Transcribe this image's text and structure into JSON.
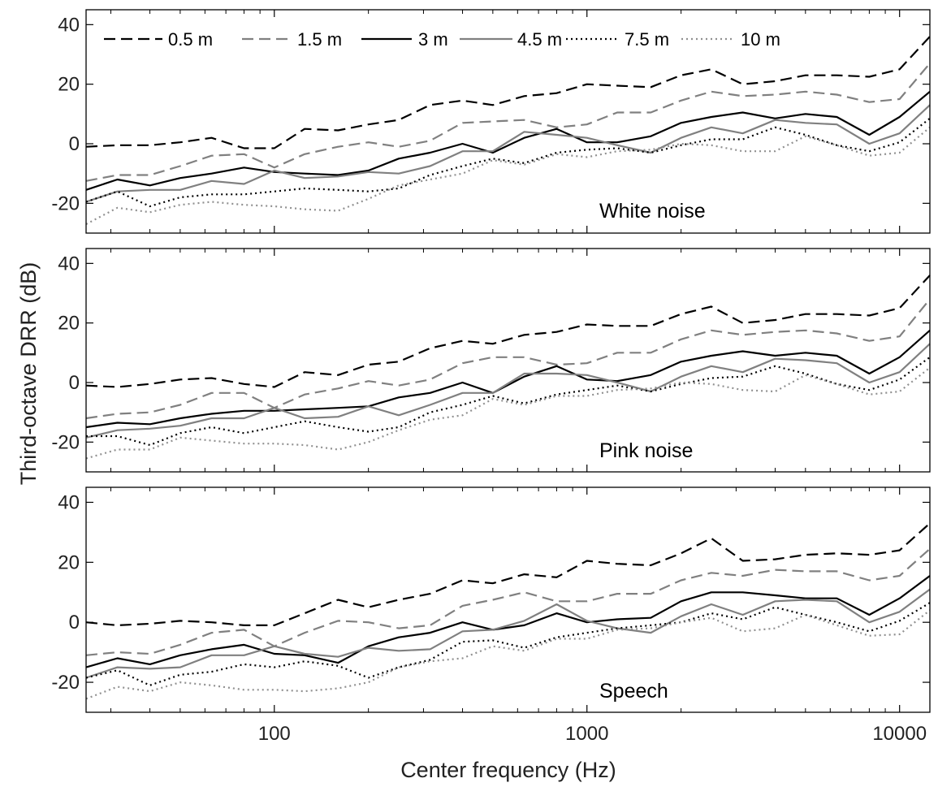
{
  "chart_data": {
    "type": "line",
    "xlabel": "Center frequency (Hz)",
    "ylabel": "Third-octave DRR (dB)",
    "x_scale": "log",
    "xlim": [
      25,
      12500
    ],
    "ylim": [
      -30,
      45
    ],
    "x_ticks": [
      100,
      1000,
      10000
    ],
    "x_tick_labels": [
      "100",
      "1000",
      "10000"
    ],
    "y_ticks": [
      -20,
      0,
      20,
      40
    ],
    "y_tick_labels": [
      "-20",
      "0",
      "20",
      "40"
    ],
    "grid": false,
    "legend_position": "top",
    "x": [
      25,
      31.5,
      40,
      50,
      63,
      80,
      100,
      125,
      160,
      200,
      250,
      315,
      400,
      500,
      630,
      800,
      1000,
      1250,
      1600,
      2000,
      2500,
      3150,
      4000,
      5000,
      6300,
      8000,
      10000,
      12500
    ],
    "series_styles": [
      {
        "name": "0.5 m",
        "color": "#000000",
        "dash": "dashed"
      },
      {
        "name": "1.5 m",
        "color": "#808080",
        "dash": "dashed"
      },
      {
        "name": "3 m",
        "color": "#000000",
        "dash": "solid"
      },
      {
        "name": "4.5 m",
        "color": "#808080",
        "dash": "solid"
      },
      {
        "name": "7.5 m",
        "color": "#000000",
        "dash": "dotted"
      },
      {
        "name": "10 m",
        "color": "#909090",
        "dash": "dotted"
      }
    ],
    "panels": [
      {
        "label": "White noise",
        "series": [
          {
            "name": "0.5 m",
            "values": [
              -1,
              -0.5,
              -0.5,
              0.5,
              2,
              -1.5,
              -1.5,
              5,
              4.5,
              6.5,
              8,
              13,
              14.5,
              13,
              16,
              17,
              20,
              19.5,
              19,
              23,
              25,
              20,
              21,
              23,
              23,
              22.5,
              25,
              36
            ]
          },
          {
            "name": "1.5 m",
            "values": [
              -12.5,
              -10.5,
              -10.5,
              -7.5,
              -4,
              -3.5,
              -8,
              -3.5,
              -1,
              0.5,
              -1,
              1,
              7,
              7.5,
              8,
              5.5,
              6.5,
              10.5,
              10.5,
              14.5,
              17.5,
              16,
              16.5,
              17.5,
              16.5,
              14,
              15,
              27
            ]
          },
          {
            "name": "3 m",
            "values": [
              -15.5,
              -12,
              -14,
              -11.5,
              -10,
              -8,
              -9.5,
              -10,
              -10.5,
              -9,
              -5,
              -3,
              0,
              -3,
              2,
              5,
              0.5,
              0.5,
              2.5,
              7,
              9,
              10.5,
              8.5,
              10,
              9,
              3,
              9,
              17.5
            ]
          },
          {
            "name": "4.5 m",
            "values": [
              -19.5,
              -16,
              -15.5,
              -15.5,
              -12.5,
              -13.5,
              -9,
              -11.5,
              -11,
              -9.5,
              -10,
              -7.5,
              -2.5,
              -2.5,
              4,
              3,
              2,
              -0.5,
              -3,
              2,
              5.5,
              3.5,
              8,
              7,
              6.5,
              0,
              3.5,
              13
            ]
          },
          {
            "name": "7.5 m",
            "values": [
              -19.5,
              -16,
              -21,
              -18,
              -17,
              -17,
              -16,
              -15,
              -15.5,
              -16,
              -15,
              -10.5,
              -7.5,
              -5,
              -6.5,
              -3,
              -2,
              -1.5,
              -3,
              -0.5,
              1.5,
              1.5,
              5.5,
              3,
              -0.5,
              -2.5,
              0.5,
              8.5
            ]
          },
          {
            "name": "10 m",
            "values": [
              -27,
              -21.5,
              -23,
              -20.5,
              -19.5,
              -20.5,
              -21,
              -22,
              -22.5,
              -18.5,
              -14,
              -12,
              -10,
              -5.5,
              -7,
              -3.5,
              -4.5,
              -2.5,
              -2,
              0,
              -0.5,
              -2.5,
              -2.5,
              2.5,
              -0.5,
              -4,
              -3,
              5.5
            ]
          }
        ]
      },
      {
        "label": "Pink noise",
        "series": [
          {
            "name": "0.5 m",
            "values": [
              -1,
              -1.5,
              -0.5,
              1,
              1.5,
              -0.5,
              -1.5,
              3.5,
              2.5,
              6,
              7,
              11.5,
              14,
              13,
              16,
              17,
              19.5,
              19,
              19,
              23,
              25.5,
              20,
              21,
              23,
              23,
              22.5,
              25,
              36
            ]
          },
          {
            "name": "1.5 m",
            "values": [
              -12,
              -10.5,
              -10,
              -7.5,
              -3.5,
              -3.5,
              -8.5,
              -4,
              -2,
              0.5,
              -1,
              1,
              6.5,
              8.5,
              8.5,
              6,
              6.5,
              10,
              10,
              14.5,
              17.5,
              16,
              17,
              17.5,
              16.5,
              14,
              15.5,
              28
            ]
          },
          {
            "name": "3 m",
            "values": [
              -15,
              -13.5,
              -14,
              -12,
              -10.5,
              -9.5,
              -9.5,
              -9,
              -8.5,
              -8,
              -5,
              -3.5,
              0,
              -3.5,
              2,
              5.5,
              1,
              0.5,
              2.5,
              7,
              9,
              10.5,
              9,
              10,
              9,
              3,
              8.5,
              17.5
            ]
          },
          {
            "name": "4.5 m",
            "values": [
              -18.5,
              -16,
              -15.5,
              -14.5,
              -12,
              -12,
              -8.5,
              -12,
              -11.5,
              -8,
              -11,
              -7.5,
              -3.5,
              -3.5,
              3,
              3,
              2.5,
              0,
              -3,
              2,
              5.5,
              3.5,
              8,
              7.5,
              6.5,
              0,
              3.5,
              13
            ]
          },
          {
            "name": "7.5 m",
            "values": [
              -18,
              -18,
              -21,
              -17,
              -15,
              -17,
              -15,
              -13,
              -15,
              -16.5,
              -15,
              -10,
              -7.5,
              -4.5,
              -7,
              -4,
              -2.5,
              -1,
              -3,
              -0.5,
              1.5,
              2,
              5.5,
              3,
              -0.5,
              -2.5,
              1,
              8.5
            ]
          },
          {
            "name": "10 m",
            "values": [
              -25.5,
              -22.5,
              -22.5,
              -18.5,
              -19.5,
              -20.5,
              -20.5,
              -21,
              -22.5,
              -20,
              -16,
              -12.5,
              -11,
              -5.5,
              -7.5,
              -4.5,
              -4.5,
              -2.5,
              -2,
              0,
              -0.5,
              -2.5,
              -3,
              2.5,
              -0.5,
              -4,
              -3,
              5
            ]
          }
        ]
      },
      {
        "label": "Speech",
        "series": [
          {
            "name": "0.5 m",
            "values": [
              0,
              -1,
              -0.5,
              0.5,
              0,
              -1,
              -1,
              3,
              7.5,
              5,
              7.5,
              9.5,
              14,
              13,
              16,
              15,
              20.5,
              19.5,
              19,
              23,
              28,
              20.5,
              21,
              22.5,
              23,
              22.5,
              24,
              33
            ]
          },
          {
            "name": "1.5 m",
            "values": [
              -11,
              -10,
              -10.5,
              -7.5,
              -3.5,
              -2.5,
              -8,
              -3.5,
              0.5,
              0,
              -2,
              -1,
              5.5,
              7.5,
              10,
              7,
              7,
              9.5,
              9.5,
              14,
              16.5,
              15.5,
              17.5,
              17,
              17,
              14,
              15.5,
              24.5
            ]
          },
          {
            "name": "3 m",
            "values": [
              -15,
              -12,
              -14,
              -11,
              -9,
              -7.5,
              -10.5,
              -11,
              -13.5,
              -8,
              -5,
              -3.5,
              0,
              -2.5,
              -1,
              3,
              0,
              1,
              1.5,
              7,
              10,
              10,
              9,
              8,
              8,
              2.5,
              8,
              15.5
            ]
          },
          {
            "name": "4.5 m",
            "values": [
              -18.5,
              -15,
              -15.5,
              -15,
              -11,
              -11,
              -8,
              -10.5,
              -11.5,
              -8.5,
              -9.5,
              -9,
              -3,
              -2.5,
              0.5,
              6,
              0.5,
              -2,
              -3.5,
              2,
              6,
              2.5,
              7,
              7.5,
              7,
              0,
              3.5,
              11
            ]
          },
          {
            "name": "7.5 m",
            "values": [
              -18.5,
              -16,
              -21,
              -17.5,
              -16.5,
              -14,
              -15,
              -13,
              -14.5,
              -18.5,
              -15,
              -12.5,
              -6.5,
              -6,
              -8.5,
              -5,
              -3.5,
              -2,
              -1,
              0,
              3,
              1,
              5,
              2.5,
              0,
              -3,
              0.5,
              6.5
            ]
          },
          {
            "name": "10 m",
            "values": [
              -25.5,
              -21.5,
              -23,
              -20,
              -21,
              -22.5,
              -22.5,
              -23,
              -22,
              -20,
              -15,
              -13,
              -12,
              -8,
              -9.5,
              -5.5,
              -5.5,
              -2.5,
              -2,
              0,
              1.5,
              -3,
              -2,
              2.5,
              -1,
              -4.5,
              -4,
              4
            ]
          }
        ]
      }
    ]
  }
}
